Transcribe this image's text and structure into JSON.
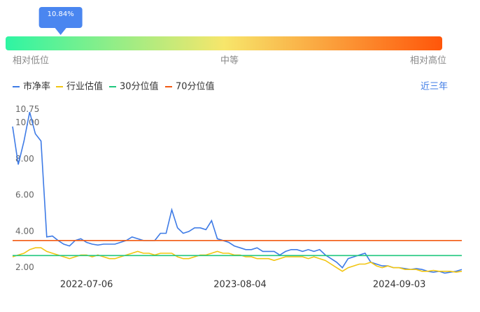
{
  "gauge": {
    "value": 10.84,
    "label": "10.84%",
    "low": "相对低位",
    "mid": "中等",
    "high": "相对高位"
  },
  "range_button": "近三年",
  "chart_data": {
    "type": "line",
    "categories": [
      null,
      null,
      null,
      null,
      null,
      null,
      null,
      null,
      null,
      null,
      null,
      null,
      null,
      "2022-07-06",
      null,
      null,
      null,
      null,
      null,
      null,
      null,
      null,
      null,
      null,
      null,
      null,
      null,
      null,
      null,
      null,
      null,
      null,
      null,
      null,
      null,
      null,
      null,
      null,
      null,
      null,
      "2023-08-04",
      null,
      null,
      null,
      null,
      null,
      null,
      null,
      null,
      null,
      null,
      null,
      null,
      null,
      null,
      null,
      null,
      null,
      null,
      null,
      null,
      null,
      null,
      null,
      null,
      null,
      null,
      null,
      "2024-09-03",
      null,
      null,
      null,
      null,
      null,
      null,
      null,
      null,
      null,
      null,
      null
    ],
    "series": [
      {
        "name": "市净率",
        "color": "#3e7be6",
        "values": [
          9.8,
          7.7,
          9.0,
          10.6,
          9.4,
          9.0,
          3.7,
          3.75,
          3.5,
          3.3,
          3.2,
          3.5,
          3.6,
          3.4,
          3.3,
          3.25,
          3.3,
          3.3,
          3.3,
          3.4,
          3.5,
          3.7,
          3.6,
          3.5,
          3.5,
          3.5,
          3.9,
          3.9,
          5.2,
          4.2,
          3.9,
          4.0,
          4.2,
          4.2,
          4.1,
          4.6,
          3.6,
          3.5,
          3.4,
          3.2,
          3.1,
          3.0,
          3.0,
          3.1,
          2.9,
          2.9,
          2.9,
          2.7,
          2.9,
          3.0,
          3.0,
          2.9,
          3.0,
          2.9,
          3.0,
          2.7,
          2.5,
          2.3,
          2.0,
          2.5,
          2.6,
          2.7,
          2.8,
          2.3,
          2.2,
          2.1,
          2.1,
          2.0,
          2.0,
          1.95,
          1.9,
          1.95,
          1.9,
          1.8,
          1.75,
          1.8,
          1.7,
          1.75,
          1.8,
          1.9
        ]
      },
      {
        "name": "行业估值",
        "color": "#f2c511",
        "values": [
          2.6,
          2.7,
          2.8,
          3.0,
          3.1,
          3.1,
          2.9,
          2.8,
          2.7,
          2.6,
          2.5,
          2.6,
          2.7,
          2.7,
          2.6,
          2.7,
          2.6,
          2.5,
          2.5,
          2.6,
          2.7,
          2.8,
          2.9,
          2.8,
          2.8,
          2.7,
          2.8,
          2.8,
          2.8,
          2.6,
          2.5,
          2.5,
          2.6,
          2.7,
          2.7,
          2.8,
          2.9,
          2.8,
          2.8,
          2.7,
          2.7,
          2.6,
          2.6,
          2.5,
          2.5,
          2.5,
          2.4,
          2.5,
          2.6,
          2.6,
          2.6,
          2.6,
          2.5,
          2.6,
          2.5,
          2.4,
          2.2,
          2.0,
          1.8,
          2.0,
          2.1,
          2.2,
          2.2,
          2.3,
          2.1,
          2.0,
          2.1,
          2.0,
          2.0,
          1.9,
          1.9,
          1.9,
          1.8,
          1.8,
          1.85,
          1.8,
          1.8,
          1.8,
          1.75,
          1.8
        ]
      },
      {
        "name": "30分位值",
        "color": "#1fc77e",
        "value": 2.67
      },
      {
        "name": "70分位值",
        "color": "#f25a12",
        "value": 3.5
      }
    ],
    "ylim": [
      1.6,
      10.8
    ],
    "yticks": [
      {
        "value": 2,
        "label": "2.00"
      },
      {
        "value": 4,
        "label": "4.00"
      },
      {
        "value": 6,
        "label": "6.00"
      },
      {
        "value": 8,
        "label": "8.00"
      },
      {
        "value": 10,
        "label": "10.00"
      },
      10.75
    ],
    "grid": false
  }
}
